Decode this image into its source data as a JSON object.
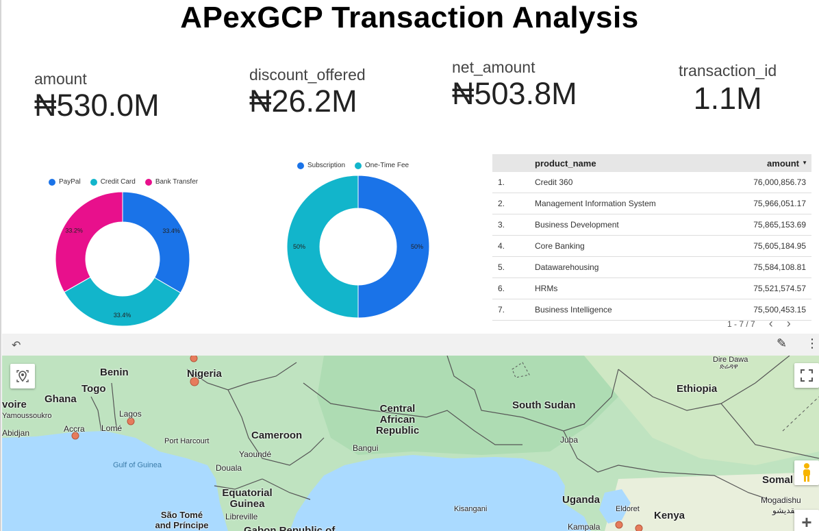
{
  "title": "APexGCP Transaction Analysis",
  "kpis": [
    {
      "label": "amount",
      "value": "₦530.0M"
    },
    {
      "label": "discount_offered",
      "value": "₦26.2M"
    },
    {
      "label": "net_amount",
      "value": "₦503.8M"
    },
    {
      "label": "transaction_id",
      "value": "1.1M"
    }
  ],
  "chart_data": [
    {
      "type": "pie",
      "donut": true,
      "labels": [
        "PayPal",
        "Credit Card",
        "Bank Transfer"
      ],
      "values": [
        33.4,
        33.4,
        33.2
      ],
      "value_labels": [
        "33.4%",
        "33.4%",
        "33.2%"
      ],
      "colors": [
        "#1a73e8",
        "#12b5cb",
        "#e8108c"
      ],
      "legend": "top"
    },
    {
      "type": "pie",
      "donut": true,
      "labels": [
        "Subscription",
        "One-Time Fee"
      ],
      "values": [
        50,
        50
      ],
      "value_labels": [
        "50%",
        "50%"
      ],
      "colors": [
        "#1a73e8",
        "#12b5cb"
      ],
      "legend": "top"
    }
  ],
  "table": {
    "headers": [
      "product_name",
      "amount"
    ],
    "sort_icon": "triangle-down-icon",
    "rows": [
      {
        "n": "1.",
        "product": "Credit 360",
        "amount": "76,000,856.73"
      },
      {
        "n": "2.",
        "product": "Management Information System",
        "amount": "75,966,051.17"
      },
      {
        "n": "3.",
        "product": "Business Development",
        "amount": "75,865,153.69"
      },
      {
        "n": "4.",
        "product": "Core Banking",
        "amount": "75,605,184.95"
      },
      {
        "n": "5.",
        "product": "Datawarehousing",
        "amount": "75,584,108.81"
      },
      {
        "n": "6.",
        "product": "HRMs",
        "amount": "75,521,574.57"
      },
      {
        "n": "7.",
        "product": "Business Intelligence",
        "amount": "75,500,453.15"
      }
    ],
    "pagination": "1 - 7 / 7"
  },
  "map": {
    "toolbar_icons": [
      "undo-icon",
      "pencil-icon",
      "more-vert-icon"
    ],
    "controls": [
      "locate-icon",
      "fullscreen-icon",
      "pegman-icon",
      "zoom-in-icon"
    ],
    "labels": {
      "benin": "Benin",
      "nigeria": "Nigeria",
      "togo": "Togo",
      "ghana": "Ghana",
      "ivoire": "voire",
      "yamoussoukro": "Yamoussoukro",
      "abidjan": "Abidjan",
      "accra": "Accra",
      "lome": "Lomé",
      "lagos": "Lagos",
      "port_harcourt": "Port Harcourt",
      "gulf_of_guinea": "Gulf of Guinea",
      "cameroon": "Cameroon",
      "yaounde": "Yaoundé",
      "douala": "Douala",
      "equatorial_guinea": "Equatorial Guinea",
      "sao_tome": "São Tomé and Príncipe",
      "libreville": "Libreville",
      "central_african_republic": "Central African Republic",
      "bangui": "Bangui",
      "south_sudan": "South Sudan",
      "juba": "Juba",
      "uganda": "Uganda",
      "kampala": "Kampala",
      "kisangani": "Kisangani",
      "eldoret": "Eldoret",
      "kenya": "Kenya",
      "ethiopia": "Ethiopia",
      "dire_dawa": "Dire Dawa",
      "dire_dawa_amharic": "ድሬዳዋ",
      "somalia": "Somal",
      "mogadishu": "Mogadishu",
      "mogadishu_arabic": "مقديشو",
      "congo": "Gabon   Republic of"
    }
  }
}
